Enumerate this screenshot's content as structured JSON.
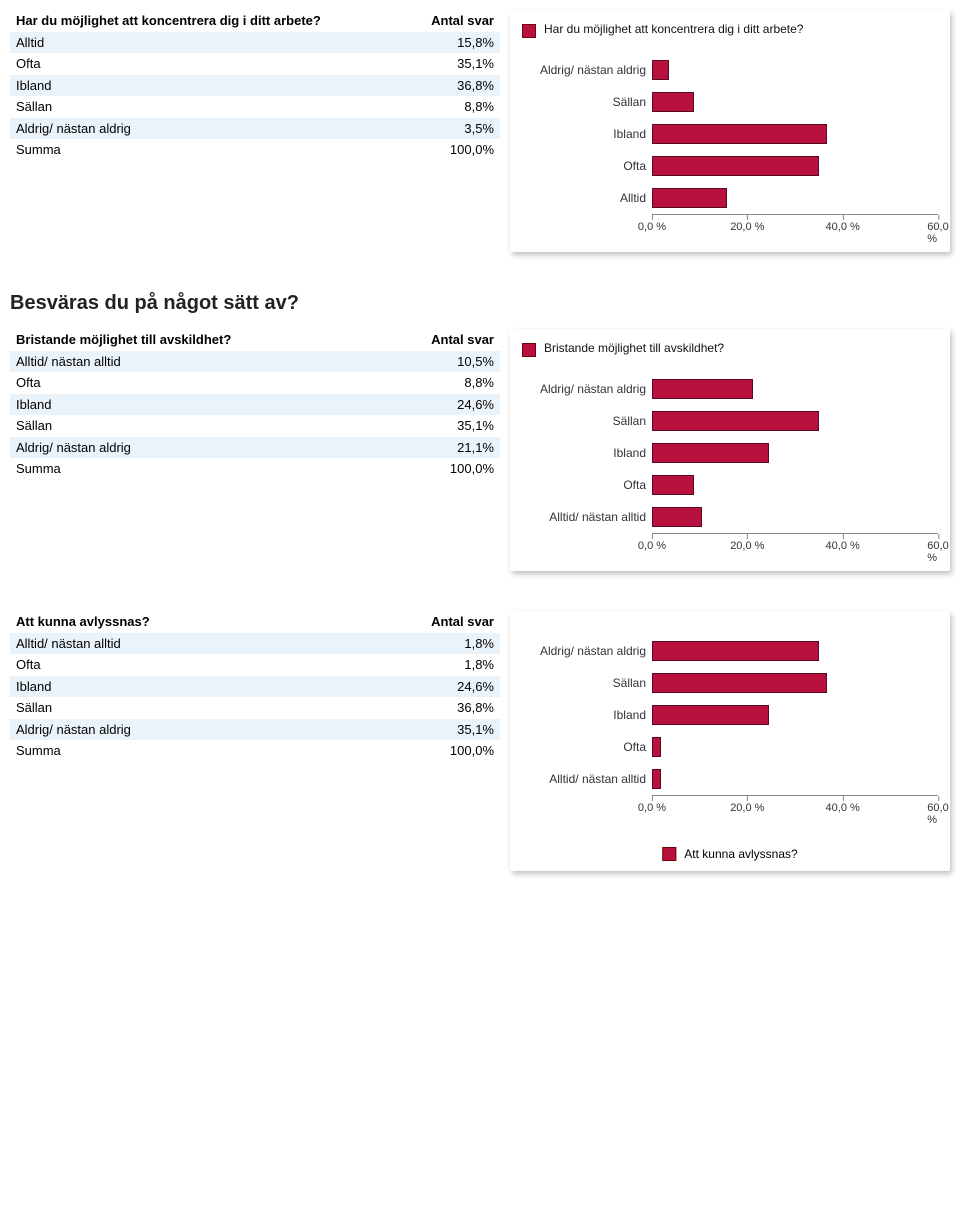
{
  "colors": {
    "bar": "#b8113f",
    "alt_row": "#eaf3fa"
  },
  "axis": {
    "min": 0,
    "max": 60,
    "ticks": [
      "0,0 %",
      "20,0 %",
      "40,0 %",
      "60,0 %"
    ],
    "tick_positions_pct": [
      0,
      33.33,
      66.67,
      100
    ]
  },
  "sections": [
    {
      "table_title": "Har du möjlighet att koncentrera dig i ditt arbete?",
      "value_header": "Antal svar",
      "rows": [
        {
          "label": "Alltid",
          "value": "15,8%",
          "num": 15.8
        },
        {
          "label": "Ofta",
          "value": "35,1%",
          "num": 35.1
        },
        {
          "label": "Ibland",
          "value": "36,8%",
          "num": 36.8
        },
        {
          "label": "Sällan",
          "value": "8,8%",
          "num": 8.8
        },
        {
          "label": "Aldrig/ nästan aldrig",
          "value": "3,5%",
          "num": 3.5
        },
        {
          "label": "Summa",
          "value": "100,0%",
          "num": null
        }
      ],
      "chart_legend": "Har du möjlighet att koncentrera dig i ditt arbete?",
      "chart_order": [
        "Aldrig/ nästan aldrig",
        "Sällan",
        "Ibland",
        "Ofta",
        "Alltid"
      ],
      "legend_pos": "top"
    },
    {
      "heading": "Besväras du på något sätt av?",
      "table_title": "Bristande möjlighet till avskildhet?",
      "value_header": "Antal svar",
      "rows": [
        {
          "label": "Alltid/ nästan alltid",
          "value": "10,5%",
          "num": 10.5
        },
        {
          "label": "Ofta",
          "value": "8,8%",
          "num": 8.8
        },
        {
          "label": "Ibland",
          "value": "24,6%",
          "num": 24.6
        },
        {
          "label": "Sällan",
          "value": "35,1%",
          "num": 35.1
        },
        {
          "label": "Aldrig/ nästan aldrig",
          "value": "21,1%",
          "num": 21.1
        },
        {
          "label": "Summa",
          "value": "100,0%",
          "num": null
        }
      ],
      "chart_legend": "Bristande möjlighet till avskildhet?",
      "chart_order": [
        "Aldrig/ nästan aldrig",
        "Sällan",
        "Ibland",
        "Ofta",
        "Alltid/ nästan alltid"
      ],
      "legend_pos": "top"
    },
    {
      "table_title": "Att kunna avlyssnas?",
      "value_header": "Antal svar",
      "rows": [
        {
          "label": "Alltid/ nästan alltid",
          "value": "1,8%",
          "num": 1.8
        },
        {
          "label": "Ofta",
          "value": "1,8%",
          "num": 1.8
        },
        {
          "label": "Ibland",
          "value": "24,6%",
          "num": 24.6
        },
        {
          "label": "Sällan",
          "value": "36,8%",
          "num": 36.8
        },
        {
          "label": "Aldrig/ nästan aldrig",
          "value": "35,1%",
          "num": 35.1
        },
        {
          "label": "Summa",
          "value": "100,0%",
          "num": null
        }
      ],
      "chart_legend": "Att kunna avlyssnas?",
      "chart_order": [
        "Aldrig/ nästan aldrig",
        "Sällan",
        "Ibland",
        "Ofta",
        "Alltid/ nästan alltid"
      ],
      "legend_pos": "bottom"
    }
  ]
}
